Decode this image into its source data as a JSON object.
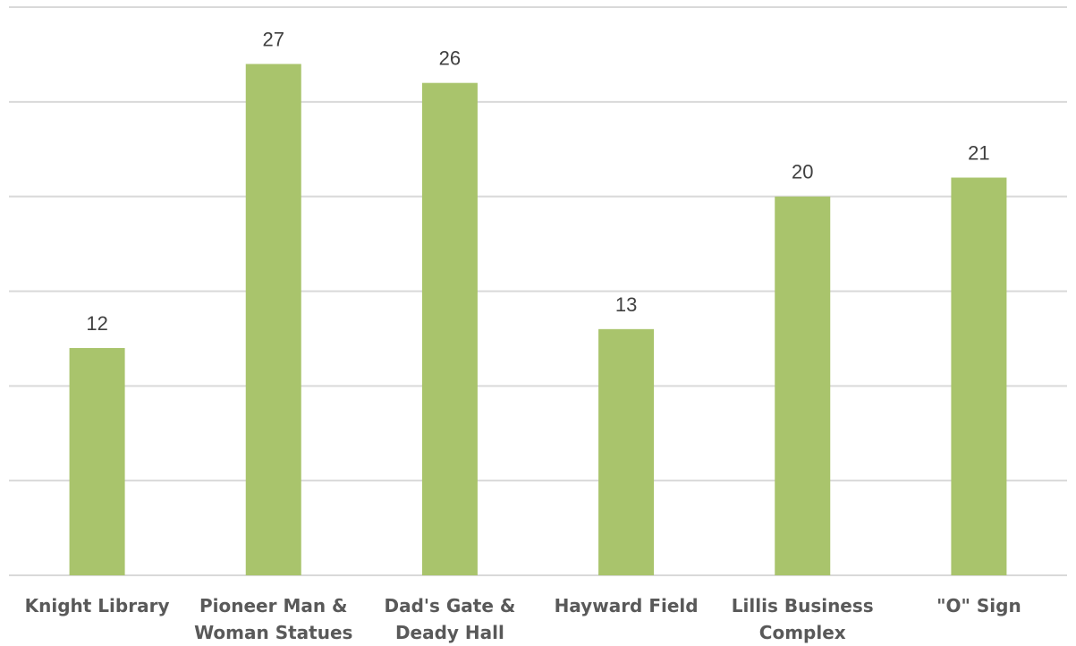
{
  "chart_data": {
    "type": "bar",
    "categories": [
      "Knight Library",
      "Pioneer Man & Woman Statues",
      "Dad's Gate & Deady Hall",
      "Hayward Field",
      "Lillis Business Complex",
      "\"O\" Sign"
    ],
    "values": [
      12,
      27,
      26,
      13,
      20,
      21
    ],
    "color": "#a9c46c",
    "ylim": [
      0,
      30
    ],
    "yticks": [
      0,
      5,
      10,
      15,
      20,
      25,
      30
    ],
    "grid": true,
    "ytick_labels_visible": false
  }
}
